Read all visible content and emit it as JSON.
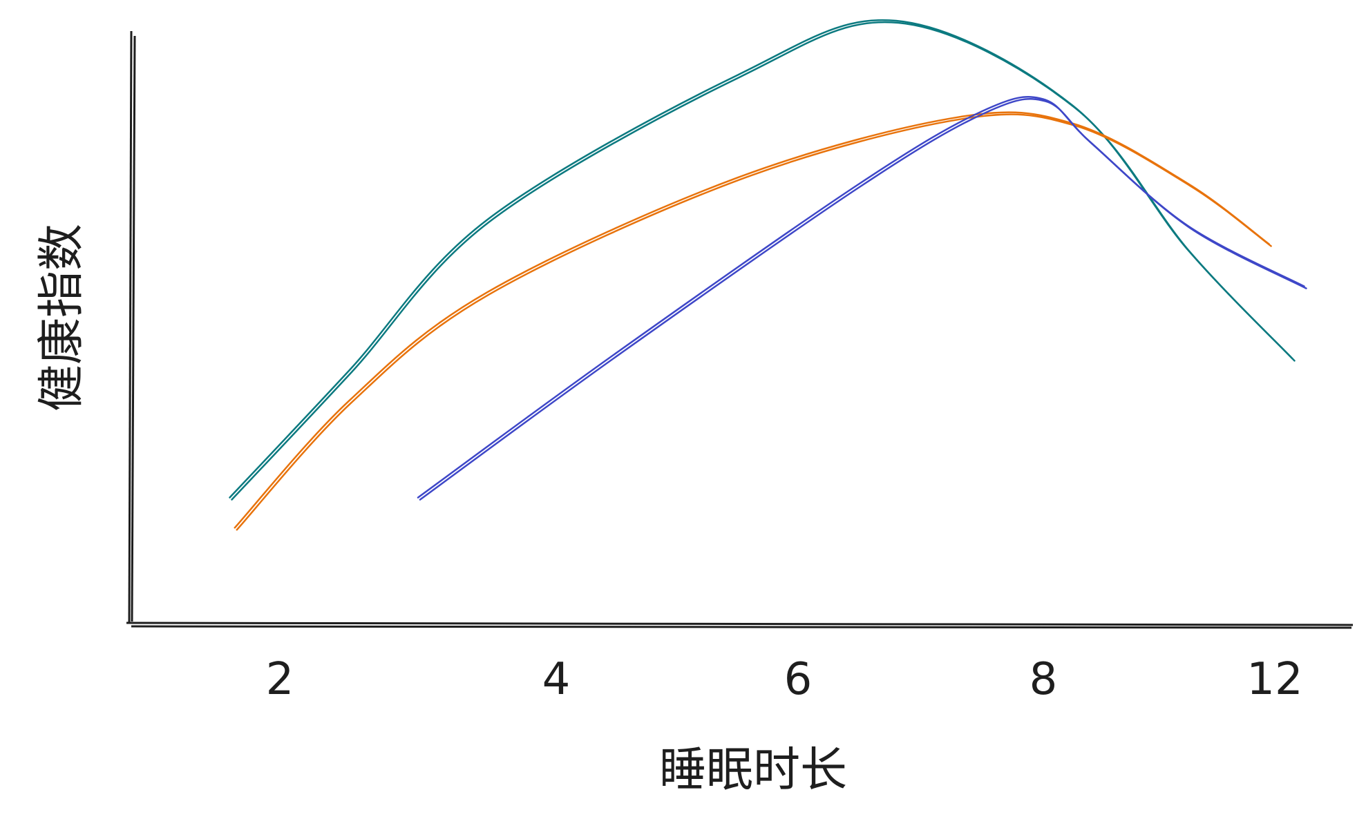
{
  "chart_data": {
    "type": "line",
    "title": "",
    "xlabel": "睡眠时长",
    "ylabel": "健康指数",
    "x_ticks": [
      "2",
      "4",
      "6",
      "8",
      "12"
    ],
    "xlim": [
      1,
      13
    ],
    "ylim": [
      0,
      100
    ],
    "grid": false,
    "legend": "none",
    "series": [
      {
        "color": "#0c7a80",
        "points": [
          [
            1.5,
            21
          ],
          [
            2.5,
            42
          ],
          [
            3.5,
            67
          ],
          [
            5.5,
            91
          ],
          [
            6.8,
            100
          ],
          [
            8.5,
            86
          ],
          [
            10.5,
            62
          ],
          [
            12.3,
            44
          ]
        ]
      },
      {
        "color": "#e8730c",
        "points": [
          [
            1.55,
            16
          ],
          [
            2.5,
            37
          ],
          [
            3.5,
            55
          ],
          [
            5.5,
            74
          ],
          [
            7.3,
            84
          ],
          [
            8.5,
            83
          ],
          [
            10.5,
            73
          ],
          [
            11.9,
            63
          ]
        ]
      },
      {
        "color": "#3e47c8",
        "points": [
          [
            3.0,
            21
          ],
          [
            4.5,
            45
          ],
          [
            6.5,
            73
          ],
          [
            7.5,
            85
          ],
          [
            8.0,
            87
          ],
          [
            8.8,
            80
          ],
          [
            10.5,
            66
          ],
          [
            12.5,
            56
          ]
        ]
      }
    ]
  }
}
